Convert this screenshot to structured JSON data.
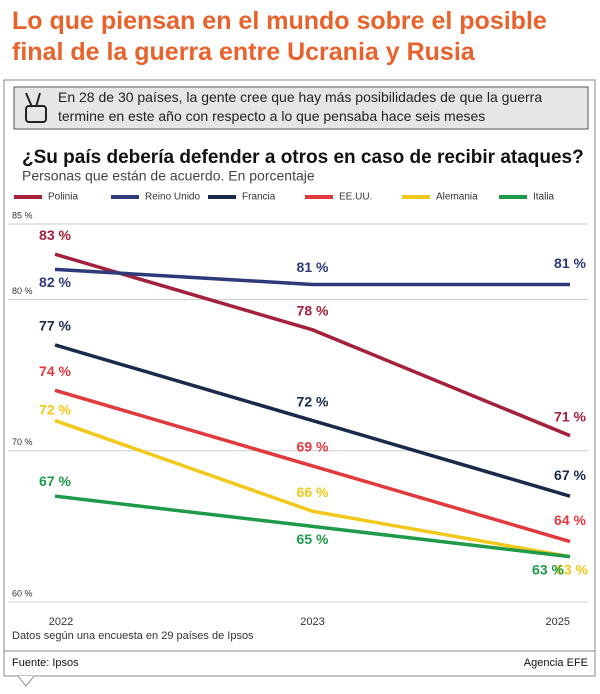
{
  "header": {
    "title": "Lo que piensan en el mundo sobre el posible final de la guerra entre Ucrania y Rusia",
    "banner": "En 28 de 30 países, la gente cree que hay más posibilidades de que la guerra termine en este año con respecto a lo que pensaba hace seis meses"
  },
  "chart_data": {
    "type": "line",
    "title": "¿Su país debería defender a otros en caso de recibir ataques?",
    "subtitle": "Personas que están de acuerdo. En porcentaje",
    "categories": [
      "2022",
      "2023",
      "2025"
    ],
    "series": [
      {
        "name": "Polinia",
        "color": "#a3213a",
        "values": [
          83,
          78,
          71
        ],
        "value_labels": [
          "83 %",
          "78 %",
          "71 %"
        ]
      },
      {
        "name": "Reino Unido",
        "color": "#2e3a7a",
        "values": [
          82,
          81,
          81
        ],
        "value_labels": [
          "82 %",
          "81 %",
          "81 %"
        ]
      },
      {
        "name": "Francia",
        "color": "#1a2a4a",
        "values": [
          77,
          72,
          67
        ],
        "value_labels": [
          "77 %",
          "72 %",
          "67 %"
        ]
      },
      {
        "name": "EE.UU.",
        "color": "#e03a3e",
        "values": [
          74,
          69,
          64
        ],
        "value_labels": [
          "74 %",
          "69 %",
          "64 %"
        ]
      },
      {
        "name": "Alemania",
        "color": "#f2c81a",
        "values": [
          72,
          66,
          63
        ],
        "value_labels": [
          "72 %",
          "66 %",
          "63 %"
        ]
      },
      {
        "name": "Italia",
        "color": "#1e9a4a",
        "values": [
          67,
          65,
          63
        ],
        "value_labels": [
          "67 %",
          "65 %",
          "63 %"
        ]
      }
    ],
    "ylim": [
      60,
      85
    ],
    "yticks": [
      {
        "value": 60,
        "label": "60 %"
      },
      {
        "value": 70,
        "label": "70 %"
      },
      {
        "value": 80,
        "label": "80 %"
      },
      {
        "value": 85,
        "label": "85 %"
      }
    ],
    "grid": true,
    "note": "Datos según una encuesta en 29 países de Ipsos"
  },
  "footer": {
    "source": "Fuente: Ipsos",
    "agency": "Agencia EFE"
  }
}
